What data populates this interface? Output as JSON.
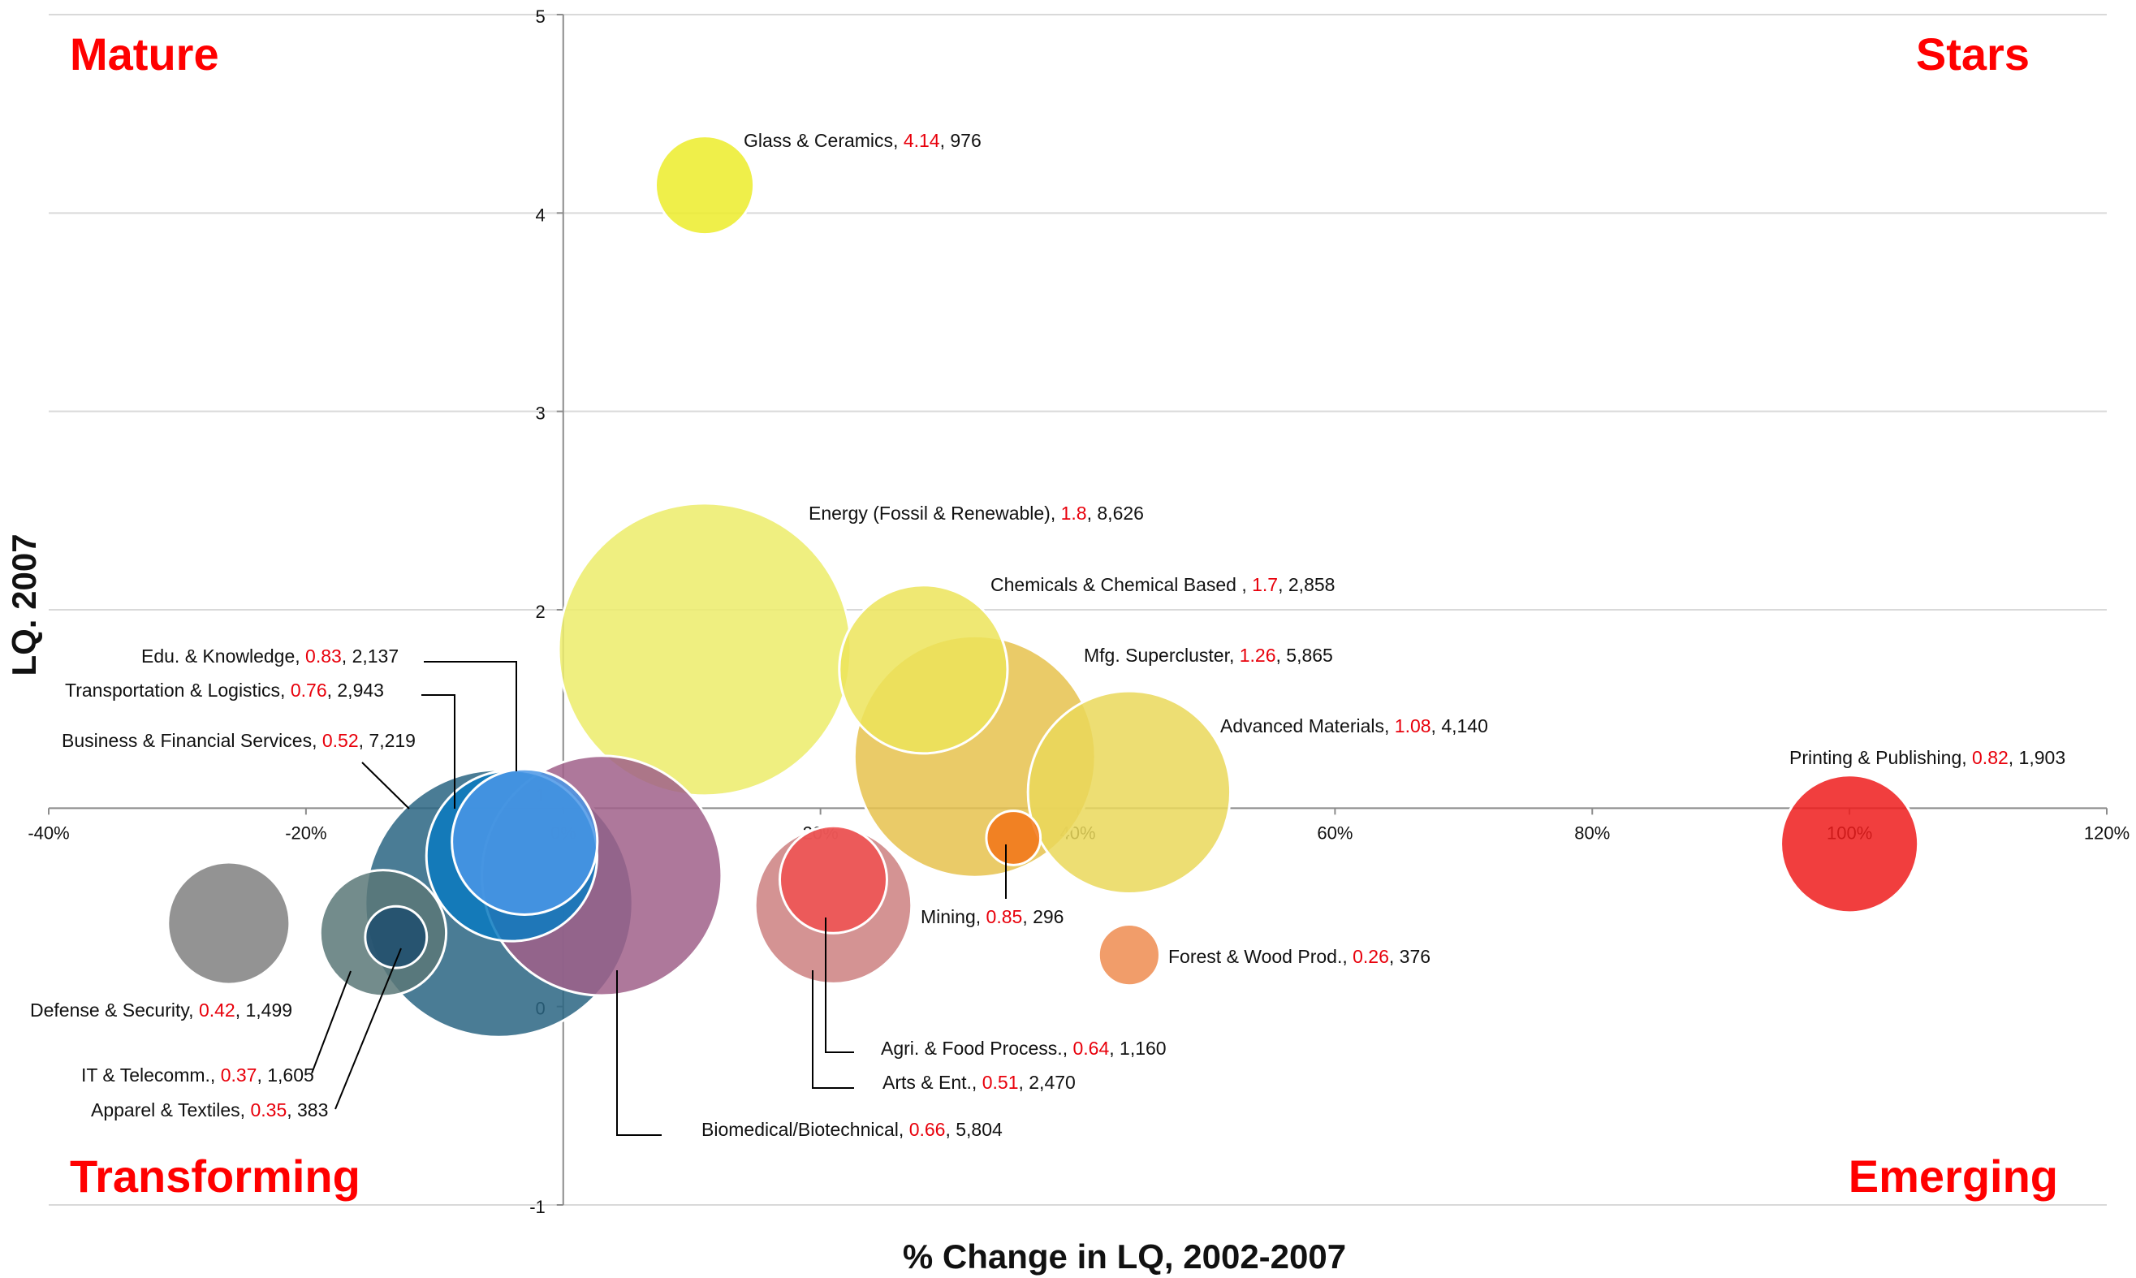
{
  "chart_data": {
    "type": "bubble",
    "xlabel": "% Change in LQ, 2002-2007",
    "ylabel": "LQ. 2007",
    "xlim": [
      -40,
      120
    ],
    "ylim": [
      -1,
      5
    ],
    "x_ticks": [
      "-40%",
      "-20%",
      "0%",
      "20%",
      "40%",
      "60%",
      "80%",
      "100%",
      "120%"
    ],
    "y_ticks": [
      "-1",
      "0",
      "1",
      "2",
      "3",
      "4",
      "5"
    ],
    "grid": true,
    "quadrants": {
      "top_left": "Mature",
      "top_right": "Stars",
      "bottom_left": "Transforming",
      "bottom_right": "Emerging"
    },
    "series": [
      {
        "name": "Glass & Ceramics",
        "lq": "4.14",
        "employment": "976",
        "x": 11,
        "y": 4.14,
        "size": 976,
        "color": "#ecec2a"
      },
      {
        "name": "Energy (Fossil & Renewable)",
        "lq": "1.8",
        "employment": "8,626",
        "x": 11,
        "y": 1.8,
        "size": 8626,
        "color": "#ecec6a"
      },
      {
        "name": "Chemicals & Chemical Based ",
        "lq": "1.7",
        "employment": "2,858",
        "x": 28,
        "y": 1.7,
        "size": 2858,
        "color": "#ece45a"
      },
      {
        "name": "Mfg. Supercluster",
        "lq": "1.26",
        "employment": "5,865",
        "x": 32,
        "y": 1.26,
        "size": 5865,
        "color": "#e6c24e"
      },
      {
        "name": "Advanced Materials",
        "lq": "1.08",
        "employment": "4,140",
        "x": 44,
        "y": 1.08,
        "size": 4140,
        "color": "#ead85a"
      },
      {
        "name": "Printing & Publishing",
        "lq": "0.82",
        "employment": "1,903",
        "x": 100,
        "y": 0.82,
        "size": 1903,
        "color": "#ee1c1c"
      },
      {
        "name": "Mining",
        "lq": "0.85",
        "employment": "296",
        "x": 35,
        "y": 0.85,
        "size": 296,
        "color": "#f27418"
      },
      {
        "name": "Forest & Wood Prod.",
        "lq": "0.26",
        "employment": "376",
        "x": 44,
        "y": 0.26,
        "size": 376,
        "color": "#ee8c50"
      },
      {
        "name": "Agri. & Food Process.",
        "lq": "0.64",
        "employment": "1,160",
        "x": 21,
        "y": 0.64,
        "size": 1160,
        "color": "#f05050"
      },
      {
        "name": "Arts & Ent.",
        "lq": "0.51",
        "employment": "2,470",
        "x": 21,
        "y": 0.51,
        "size": 2470,
        "color": "#cc8080"
      },
      {
        "name": "Biomedical/Biotechnical",
        "lq": "0.66",
        "employment": "5,804",
        "x": 3,
        "y": 0.66,
        "size": 5804,
        "color": "#a0608a"
      },
      {
        "name": "Business & Financial Services",
        "lq": "0.52",
        "employment": "7,219",
        "x": -5,
        "y": 0.52,
        "size": 7219,
        "color": "#2a6582"
      },
      {
        "name": "Transportation & Logistics",
        "lq": "0.76",
        "employment": "2,943",
        "x": -4,
        "y": 0.76,
        "size": 2943,
        "color": "#0a7ac0"
      },
      {
        "name": "Edu. & Knowledge",
        "lq": "0.83",
        "employment": "2,137",
        "x": -3,
        "y": 0.83,
        "size": 2137,
        "color": "#4a96e6"
      },
      {
        "name": "Defense & Security",
        "lq": "0.42",
        "employment": "1,499",
        "x": -26,
        "y": 0.42,
        "size": 1499,
        "color": "#808080"
      },
      {
        "name": "IT & Telecomm.",
        "lq": "0.37",
        "employment": "1,605",
        "x": -14,
        "y": 0.37,
        "size": 1605,
        "color": "#5a7878"
      },
      {
        "name": "Apparel & Textiles",
        "lq": "0.35",
        "employment": "383",
        "x": -13,
        "y": 0.35,
        "size": 383,
        "color": "#1e4e6e"
      }
    ]
  }
}
